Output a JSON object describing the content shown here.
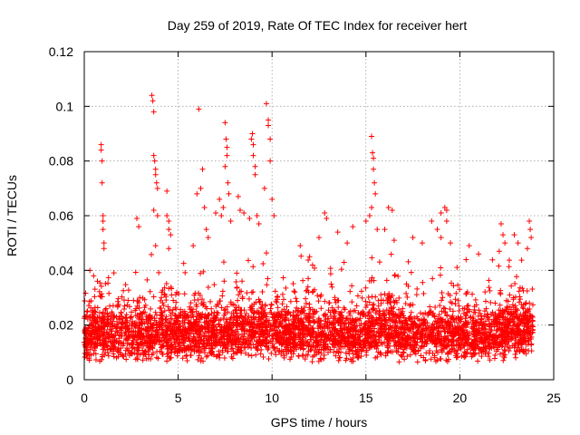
{
  "chart_data": {
    "type": "scatter",
    "title": "Day 259 of 2019, Rate Of TEC Index for receiver hert",
    "xlabel": "GPS time / hours",
    "ylabel": "ROTI / TECUs",
    "xlim": [
      0,
      25
    ],
    "ylim": [
      0,
      0.12
    ],
    "xticks": [
      0,
      5,
      10,
      15,
      20,
      25
    ],
    "xtick_labels": [
      "0",
      "5",
      "10",
      "15",
      "20",
      "25"
    ],
    "yticks": [
      0,
      0.02,
      0.04,
      0.06,
      0.08,
      0.1,
      0.12
    ],
    "ytick_labels": [
      "0",
      "0.02",
      "0.04",
      "0.06",
      "0.08",
      "0.1",
      "0.12"
    ],
    "grid": true,
    "marker": "plus",
    "color": "#ff0000",
    "x_data_range": [
      0,
      23.9
    ],
    "series": [
      {
        "points": [
          [
            0.9,
            0.086
          ],
          [
            0.9,
            0.084
          ],
          [
            0.95,
            0.08
          ],
          [
            0.95,
            0.072
          ],
          [
            1.0,
            0.06
          ],
          [
            1.0,
            0.058
          ],
          [
            1.0,
            0.055
          ],
          [
            1.05,
            0.05
          ],
          [
            1.05,
            0.048
          ],
          [
            0.3,
            0.04
          ],
          [
            0.5,
            0.038
          ],
          [
            0.7,
            0.036
          ],
          [
            2.8,
            0.059
          ],
          [
            2.9,
            0.056
          ],
          [
            3.6,
            0.104
          ],
          [
            3.65,
            0.102
          ],
          [
            3.7,
            0.098
          ],
          [
            3.7,
            0.082
          ],
          [
            3.75,
            0.08
          ],
          [
            3.8,
            0.077
          ],
          [
            3.8,
            0.075
          ],
          [
            3.85,
            0.072
          ],
          [
            3.9,
            0.07
          ],
          [
            3.7,
            0.062
          ],
          [
            3.9,
            0.06
          ],
          [
            3.8,
            0.049
          ],
          [
            4.4,
            0.06
          ],
          [
            4.5,
            0.058
          ],
          [
            4.5,
            0.055
          ],
          [
            4.6,
            0.053
          ],
          [
            4.4,
            0.069
          ],
          [
            4.5,
            0.048
          ],
          [
            6.1,
            0.099
          ],
          [
            6.3,
            0.077
          ],
          [
            6.2,
            0.07
          ],
          [
            6.0,
            0.068
          ],
          [
            6.4,
            0.063
          ],
          [
            6.5,
            0.055
          ],
          [
            6.6,
            0.052
          ],
          [
            5.8,
            0.049
          ],
          [
            7.0,
            0.061
          ],
          [
            7.2,
            0.066
          ],
          [
            7.3,
            0.06
          ],
          [
            7.5,
            0.094
          ],
          [
            7.55,
            0.088
          ],
          [
            7.6,
            0.085
          ],
          [
            7.6,
            0.082
          ],
          [
            7.5,
            0.078
          ],
          [
            7.65,
            0.072
          ],
          [
            7.7,
            0.068
          ],
          [
            7.4,
            0.063
          ],
          [
            7.8,
            0.058
          ],
          [
            8.2,
            0.067
          ],
          [
            8.3,
            0.062
          ],
          [
            8.5,
            0.061
          ],
          [
            8.8,
            0.059
          ],
          [
            8.9,
            0.088
          ],
          [
            8.95,
            0.09
          ],
          [
            9.0,
            0.086
          ],
          [
            9.0,
            0.082
          ],
          [
            9.1,
            0.078
          ],
          [
            9.1,
            0.075
          ],
          [
            9.2,
            0.06
          ],
          [
            9.3,
            0.057
          ],
          [
            9.7,
            0.101
          ],
          [
            9.8,
            0.095
          ],
          [
            9.8,
            0.093
          ],
          [
            9.9,
            0.088
          ],
          [
            9.9,
            0.08
          ],
          [
            9.6,
            0.07
          ],
          [
            10.0,
            0.066
          ],
          [
            10.1,
            0.06
          ],
          [
            11.5,
            0.049
          ],
          [
            12.0,
            0.045
          ],
          [
            12.5,
            0.052
          ],
          [
            12.8,
            0.061
          ],
          [
            12.9,
            0.059
          ],
          [
            13.5,
            0.054
          ],
          [
            14.0,
            0.05
          ],
          [
            14.3,
            0.056
          ],
          [
            15.3,
            0.089
          ],
          [
            15.35,
            0.083
          ],
          [
            15.4,
            0.081
          ],
          [
            15.4,
            0.077
          ],
          [
            15.45,
            0.072
          ],
          [
            15.5,
            0.068
          ],
          [
            15.3,
            0.063
          ],
          [
            15.2,
            0.06
          ],
          [
            15.6,
            0.055
          ],
          [
            15.0,
            0.058
          ],
          [
            16.2,
            0.063
          ],
          [
            16.4,
            0.062
          ],
          [
            16.0,
            0.055
          ],
          [
            16.5,
            0.051
          ],
          [
            17.5,
            0.052
          ],
          [
            18.0,
            0.05
          ],
          [
            18.5,
            0.058
          ],
          [
            18.8,
            0.055
          ],
          [
            19.0,
            0.061
          ],
          [
            19.2,
            0.063
          ],
          [
            19.3,
            0.062
          ],
          [
            19.3,
            0.058
          ],
          [
            19.0,
            0.052
          ],
          [
            19.5,
            0.05
          ],
          [
            20.5,
            0.049
          ],
          [
            21.0,
            0.046
          ],
          [
            22.2,
            0.057
          ],
          [
            22.3,
            0.053
          ],
          [
            22.4,
            0.05
          ],
          [
            22.1,
            0.047
          ],
          [
            22.9,
            0.053
          ],
          [
            23.1,
            0.05
          ],
          [
            23.7,
            0.058
          ],
          [
            23.75,
            0.055
          ],
          [
            23.8,
            0.052
          ],
          [
            23.6,
            0.048
          ]
        ]
      }
    ]
  }
}
